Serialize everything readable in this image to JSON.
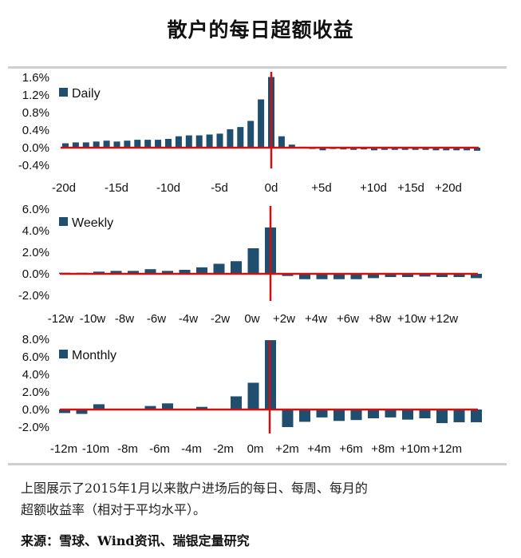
{
  "title": "散户的每日超额收益",
  "colors": {
    "bar": "#1f4e6e",
    "marker_line": "#d01010",
    "text": "#111111"
  },
  "chart_data": [
    {
      "type": "bar",
      "legend": "Daily",
      "legend_position": "top-left",
      "ylim": [
        -0.4,
        1.6
      ],
      "y_ticks": [
        "1.6%",
        "1.2%",
        "0.8%",
        "0.4%",
        "0.0%",
        "-0.4%"
      ],
      "y_tick_values": [
        1.6,
        1.2,
        0.8,
        0.4,
        0.0,
        -0.4
      ],
      "x_tick_labels": [
        "-20d",
        "-15d",
        "-10d",
        "-5d",
        "0d",
        "+5d",
        "+10d",
        "+15d",
        "+20d"
      ],
      "categories": [
        "-20d",
        "-19d",
        "-18d",
        "-17d",
        "-16d",
        "-15d",
        "-14d",
        "-13d",
        "-12d",
        "-11d",
        "-10d",
        "-9d",
        "-8d",
        "-7d",
        "-6d",
        "-5d",
        "-4d",
        "-3d",
        "-2d",
        "-1d",
        "0d",
        "+1d",
        "+2d",
        "+3d",
        "+4d",
        "+5d",
        "+6d",
        "+7d",
        "+8d",
        "+9d",
        "+10d",
        "+11d",
        "+12d",
        "+13d",
        "+14d",
        "+15d",
        "+16d",
        "+17d",
        "+18d",
        "+19d",
        "+20d"
      ],
      "values": [
        0.1,
        0.12,
        0.12,
        0.14,
        0.16,
        0.14,
        0.16,
        0.18,
        0.18,
        0.18,
        0.2,
        0.26,
        0.28,
        0.28,
        0.3,
        0.32,
        0.42,
        0.47,
        0.61,
        1.1,
        1.61,
        0.26,
        0.07,
        0.02,
        -0.03,
        -0.06,
        -0.03,
        -0.04,
        -0.05,
        -0.04,
        -0.06,
        -0.05,
        -0.05,
        -0.05,
        -0.05,
        -0.05,
        -0.06,
        -0.06,
        -0.06,
        -0.06,
        -0.07
      ],
      "event_marker": "0d"
    },
    {
      "type": "bar",
      "legend": "Weekly",
      "legend_position": "top-left",
      "ylim": [
        -2.0,
        6.0
      ],
      "y_ticks": [
        "6.0%",
        "4.0%",
        "2.0%",
        "0.0%",
        "-2.0%"
      ],
      "y_tick_values": [
        6,
        4,
        2,
        0,
        -2
      ],
      "x_tick_labels": [
        "-12w",
        "-10w",
        "-8w",
        "-6w",
        "-4w",
        "-2w",
        "0w",
        "+2w",
        "+4w",
        "+6w",
        "+8w",
        "+10w",
        "+12w"
      ],
      "categories": [
        "-12w",
        "-11w",
        "-10w",
        "-9w",
        "-8w",
        "-7w",
        "-6w",
        "-5w",
        "-4w",
        "-3w",
        "-2w",
        "-1w",
        "0w",
        "+1w",
        "+2w",
        "+3w",
        "+4w",
        "+5w",
        "+6w",
        "+7w",
        "+8w",
        "+9w",
        "+10w",
        "+11w",
        "+12w"
      ],
      "values": [
        0.1,
        0.1,
        0.2,
        0.27,
        0.27,
        0.43,
        0.27,
        0.37,
        0.6,
        0.93,
        1.17,
        2.37,
        4.3,
        -0.2,
        -0.5,
        -0.5,
        -0.5,
        -0.5,
        -0.4,
        -0.3,
        -0.3,
        -0.25,
        -0.3,
        -0.3,
        -0.4
      ],
      "event_marker": "0w"
    },
    {
      "type": "bar",
      "legend": "Monthly",
      "legend_position": "top-left",
      "ylim": [
        -2.0,
        8.0
      ],
      "y_ticks": [
        "8.0%",
        "6.0%",
        "4.0%",
        "2.0%",
        "0.0%",
        "-2.0%"
      ],
      "y_tick_values": [
        8,
        6,
        4,
        2,
        0,
        -2
      ],
      "x_tick_labels": [
        "-12m",
        "-10m",
        "-8m",
        "-6m",
        "-4m",
        "-2m",
        "0m",
        "+2m",
        "+4m",
        "+6m",
        "+8m",
        "+10m",
        "+12m"
      ],
      "categories": [
        "-12m",
        "-11m",
        "-10m",
        "-9m",
        "-8m",
        "-7m",
        "-6m",
        "-5m",
        "-4m",
        "-3m",
        "-2m",
        "-1m",
        "0m",
        "+1m",
        "+2m",
        "+3m",
        "+4m",
        "+5m",
        "+6m",
        "+7m",
        "+8m",
        "+9m",
        "+10m",
        "+11m",
        "+12m"
      ],
      "values": [
        -0.4,
        -0.5,
        0.6,
        0.05,
        0.0,
        0.4,
        0.7,
        0.0,
        0.3,
        0.0,
        1.5,
        3.05,
        7.9,
        -2.0,
        -1.4,
        -0.9,
        -1.3,
        -1.2,
        -1.0,
        -0.9,
        -1.15,
        -1.0,
        -1.55,
        -1.45,
        -1.45
      ],
      "event_marker": "0m"
    }
  ],
  "note": {
    "line1": "上图展示了2015年1月以来散户进场后的每日、每周、每月的",
    "line2": "超额收益率（相对于平均水平）。"
  },
  "source": "来源：雪球、Wind资讯、瑞银定量研究"
}
